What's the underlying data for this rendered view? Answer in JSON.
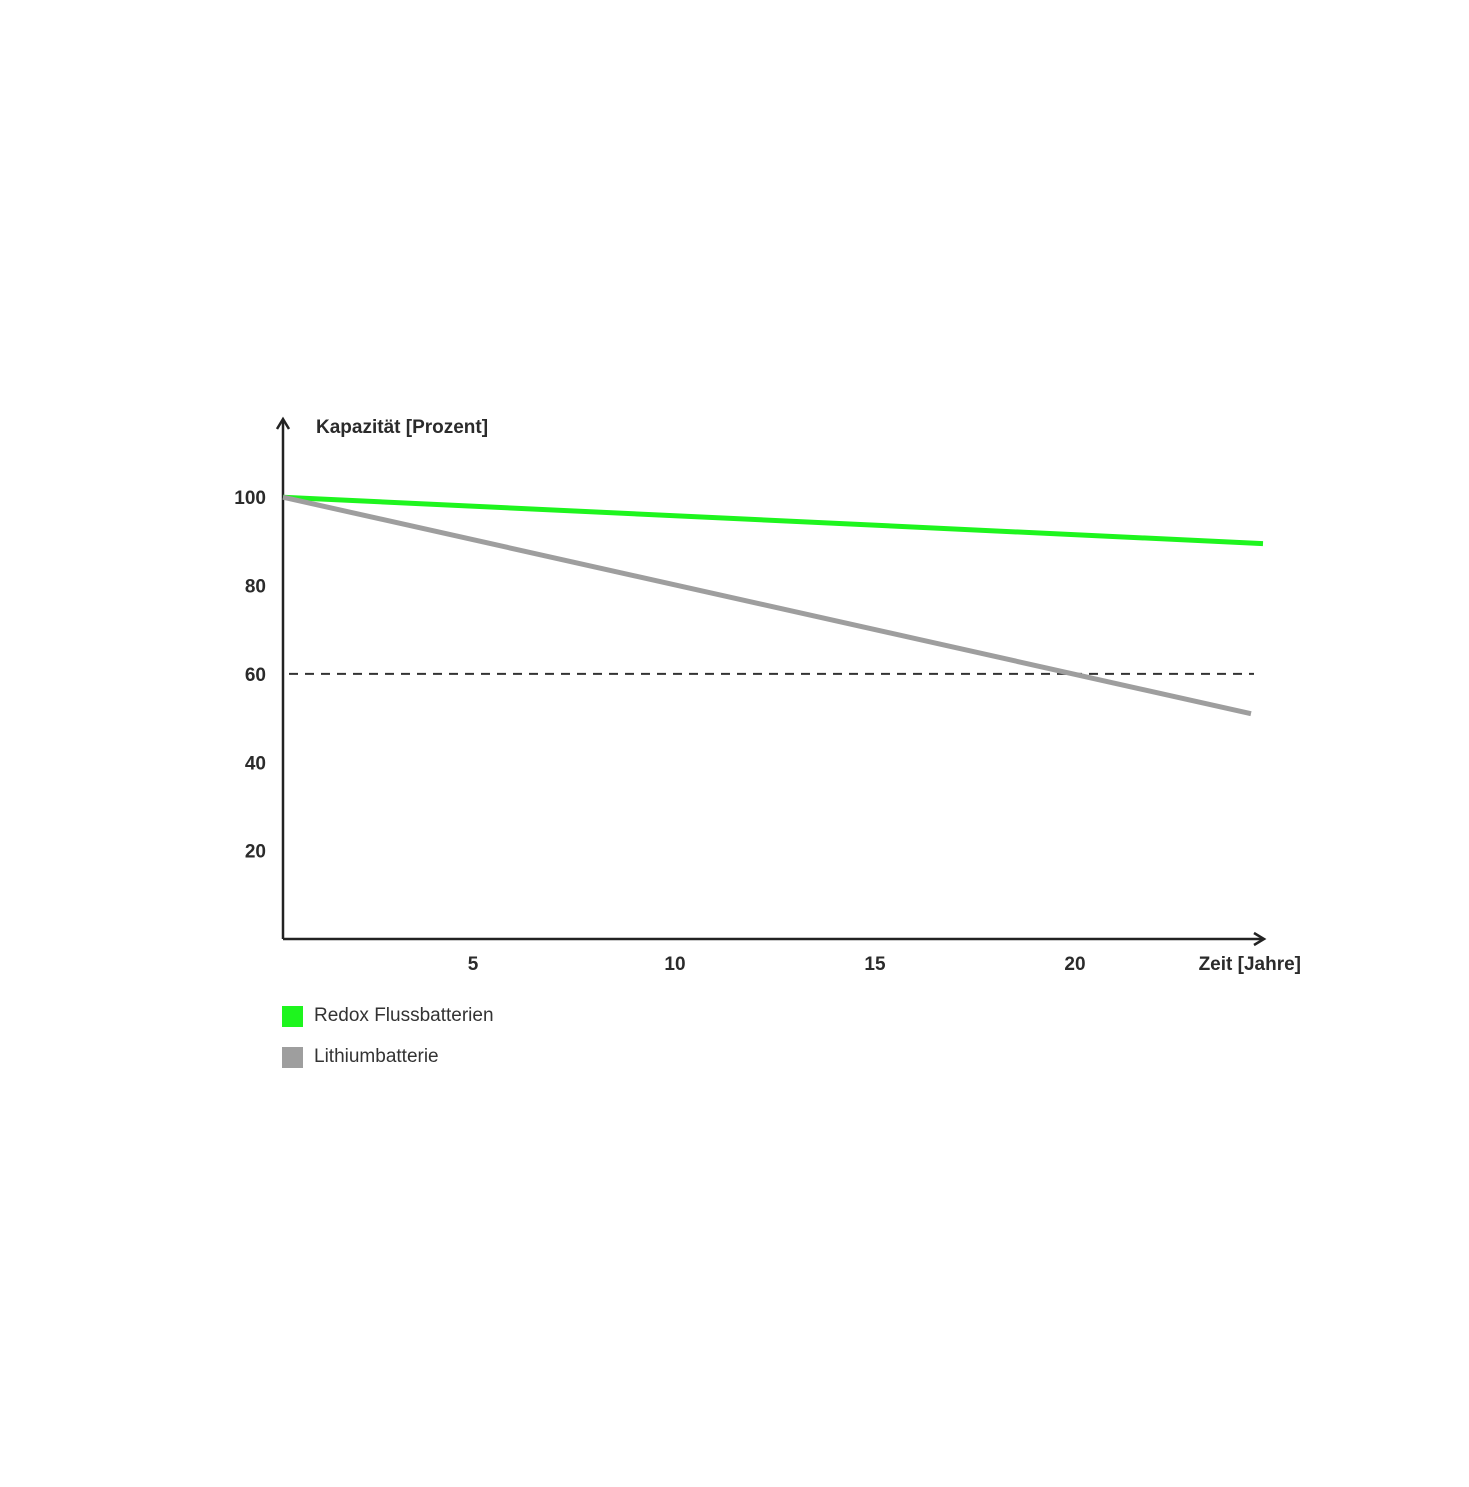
{
  "chart_data": {
    "type": "line",
    "xlabel": "Zeit [Jahre]",
    "ylabel": "Kapazität [Prozent]",
    "xlim": [
      0,
      24.5
    ],
    "ylim": [
      0,
      100
    ],
    "x_ticks": [
      5,
      10,
      15,
      20
    ],
    "y_ticks": [
      20,
      40,
      60,
      80,
      100
    ],
    "reference_line": {
      "y": 60,
      "style": "dashed",
      "color": "#333333"
    },
    "grid": false,
    "legend_position": "bottom-left",
    "series": [
      {
        "name": "Redox Flussbatterien",
        "color": "#1ef51e",
        "x": [
          0,
          24.5
        ],
        "y": [
          100,
          89.5
        ]
      },
      {
        "name": "Lithiumbatterie",
        "color": "#9e9e9e",
        "x": [
          0,
          24.2
        ],
        "y": [
          100,
          51
        ]
      }
    ]
  }
}
